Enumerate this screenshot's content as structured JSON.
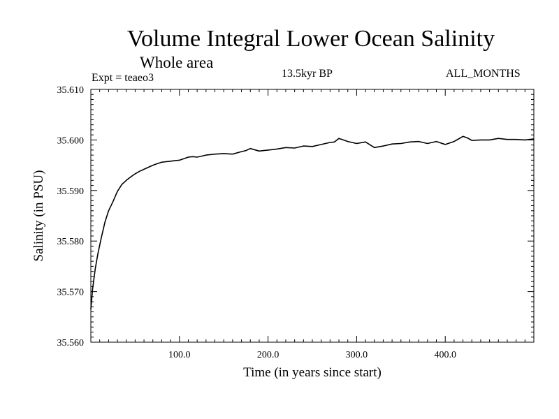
{
  "chart_data": {
    "type": "line",
    "title": "Volume Integral Lower Ocean Salinity",
    "subtitle": "Whole area",
    "experiment_label": "Expt = teaeo3",
    "period_label": "13.5kyr BP",
    "months_label": "ALL_MONTHS",
    "xlabel": "Time (in years since start)",
    "ylabel": "Salinity (in PSU)",
    "xlim": [
      0,
      500
    ],
    "ylim": [
      35.56,
      35.61
    ],
    "x_ticks": [
      100,
      200,
      300,
      400
    ],
    "x_tick_labels": [
      "100.0",
      "200.0",
      "300.0",
      "400.0"
    ],
    "y_ticks": [
      35.56,
      35.57,
      35.58,
      35.59,
      35.6,
      35.61
    ],
    "y_tick_labels": [
      "35.560",
      "35.570",
      "35.580",
      "35.590",
      "35.600",
      "35.610"
    ],
    "grid": false,
    "series": [
      {
        "name": "Salinity",
        "color": "#000000",
        "x": [
          0,
          2,
          5,
          8,
          12,
          16,
          20,
          25,
          30,
          35,
          40,
          45,
          50,
          55,
          60,
          65,
          70,
          75,
          80,
          85,
          90,
          95,
          100,
          105,
          110,
          115,
          120,
          125,
          130,
          140,
          150,
          160,
          170,
          175,
          180,
          190,
          200,
          210,
          220,
          230,
          240,
          250,
          260,
          270,
          275,
          280,
          285,
          290,
          300,
          310,
          320,
          330,
          340,
          350,
          360,
          370,
          380,
          390,
          400,
          410,
          415,
          420,
          425,
          430,
          440,
          450,
          460,
          470,
          480,
          490,
          500
        ],
        "values": [
          35.5665,
          35.5705,
          35.5745,
          35.5775,
          35.5808,
          35.5838,
          35.586,
          35.5878,
          35.5898,
          35.5912,
          35.592,
          35.5927,
          35.5933,
          35.5938,
          35.5942,
          35.5946,
          35.595,
          35.5953,
          35.5956,
          35.5957,
          35.5958,
          35.5959,
          35.596,
          35.5963,
          35.5966,
          35.5967,
          35.5966,
          35.5968,
          35.597,
          35.5972,
          35.5973,
          35.5972,
          35.5977,
          35.5979,
          35.5983,
          35.5978,
          35.598,
          35.5982,
          35.5985,
          35.5984,
          35.5988,
          35.5987,
          35.5991,
          35.5995,
          35.5996,
          35.6003,
          35.6,
          35.5997,
          35.5993,
          35.5996,
          35.5985,
          35.5988,
          35.5992,
          35.5993,
          35.5996,
          35.5997,
          35.5993,
          35.5997,
          35.5991,
          35.5997,
          35.6002,
          35.6007,
          35.6004,
          35.5999,
          35.6,
          35.6,
          35.6003,
          35.6001,
          35.6001,
          35.6,
          35.6002
        ]
      }
    ]
  }
}
